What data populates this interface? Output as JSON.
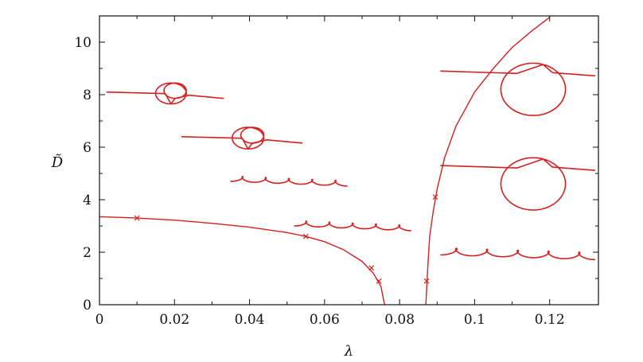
{
  "chart_data": {
    "type": "line",
    "title": "",
    "xlabel": "λ",
    "ylabel": "D̃",
    "xlim": [
      0,
      0.133
    ],
    "ylim": [
      0,
      11
    ],
    "x_ticks": [
      0,
      0.02,
      0.04,
      0.06,
      0.08,
      0.1,
      0.12
    ],
    "x_tick_labels": [
      "0",
      "0.02",
      "0.04",
      "0.06",
      "0.08",
      "0.1",
      "0.12"
    ],
    "y_ticks": [
      0,
      2,
      4,
      6,
      8,
      10
    ],
    "y_tick_labels": [
      "0",
      "2",
      "4",
      "6",
      "8",
      "10"
    ],
    "grid": false,
    "legend": "none",
    "colors": {
      "curve": "#d42020",
      "axes": "#111111"
    },
    "series": [
      {
        "x": [
          0,
          0.01,
          0.02,
          0.03,
          0.04,
          0.05,
          0.055,
          0.06,
          0.065,
          0.07,
          0.073,
          0.075,
          0.076
        ],
        "y": [
          3.35,
          3.3,
          3.22,
          3.1,
          2.95,
          2.75,
          2.6,
          2.4,
          2.1,
          1.65,
          1.2,
          0.7,
          0
        ]
      },
      {
        "x": [
          0.087,
          0.0875,
          0.088,
          0.089,
          0.09,
          0.092,
          0.095,
          0.1,
          0.105,
          0.11,
          0.115,
          0.12
        ],
        "y": [
          0,
          1.4,
          2.6,
          3.6,
          4.4,
          5.6,
          6.8,
          8.1,
          9.0,
          9.8,
          10.4,
          10.95
        ]
      }
    ],
    "markers": {
      "symbol": "x",
      "points": [
        {
          "x": 0.01,
          "y": 3.3
        },
        {
          "x": 0.055,
          "y": 2.6
        },
        {
          "x": 0.0725,
          "y": 1.4
        },
        {
          "x": 0.0745,
          "y": 0.9
        },
        {
          "x": 0.0872,
          "y": 0.9
        },
        {
          "x": 0.0895,
          "y": 4.1
        }
      ]
    },
    "inset_glyphs": [
      {
        "shape": "two-loop",
        "x_start": 0.002,
        "x_end": 0.033,
        "y": 8.1
      },
      {
        "shape": "two-loop",
        "x_start": 0.022,
        "x_end": 0.054,
        "y": 6.4
      },
      {
        "shape": "helix",
        "x_start": 0.035,
        "x_end": 0.066,
        "y": 4.7
      },
      {
        "shape": "helix",
        "x_start": 0.052,
        "x_end": 0.083,
        "y": 3.0
      },
      {
        "shape": "big-loop",
        "x_start": 0.091,
        "x_end": 0.132,
        "y": 8.9
      },
      {
        "shape": "big-loop",
        "x_start": 0.091,
        "x_end": 0.132,
        "y": 5.3
      },
      {
        "shape": "helix",
        "x_start": 0.091,
        "x_end": 0.132,
        "y": 1.9
      }
    ]
  }
}
